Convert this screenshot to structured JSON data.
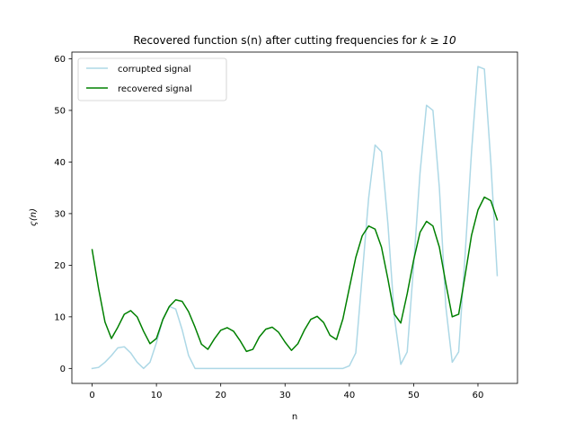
{
  "chart_data": {
    "type": "line",
    "title": "Recovered function s(n) after cutting frequencies for k ≥ 10",
    "title_main": "Recovered function s(n) after cutting frequencies for ",
    "title_math": "k ≥ 10",
    "xlabel": "n",
    "ylabel": "ς(n)",
    "xlim": [
      -3.15,
      66.15
    ],
    "ylim": [
      -2.9,
      61.3
    ],
    "xticks": [
      0,
      10,
      20,
      30,
      40,
      50,
      60
    ],
    "yticks": [
      0,
      10,
      20,
      30,
      40,
      50,
      60
    ],
    "grid": false,
    "legend_position": "top-left",
    "x": [
      0,
      1,
      2,
      3,
      4,
      5,
      6,
      7,
      8,
      9,
      10,
      11,
      12,
      13,
      14,
      15,
      16,
      17,
      18,
      19,
      20,
      21,
      22,
      23,
      24,
      25,
      26,
      27,
      28,
      29,
      30,
      31,
      32,
      33,
      34,
      35,
      36,
      37,
      38,
      39,
      40,
      41,
      42,
      43,
      44,
      45,
      46,
      47,
      48,
      49,
      50,
      51,
      52,
      53,
      54,
      55,
      56,
      57,
      58,
      59,
      60,
      61,
      62,
      63
    ],
    "series": [
      {
        "name": "corrupted signal",
        "color": "#add8e6",
        "values": [
          0,
          0.2,
          1.2,
          2.5,
          4,
          4.2,
          3,
          1.2,
          0,
          1.2,
          5,
          9.5,
          12,
          11.5,
          7.5,
          2.5,
          0,
          0,
          0,
          0,
          0,
          0,
          0,
          0,
          0,
          0,
          0,
          0,
          0,
          0,
          0,
          0,
          0,
          0,
          0,
          0,
          0,
          0,
          0,
          0,
          0.5,
          3,
          18,
          33,
          43.3,
          42,
          28,
          10,
          0.8,
          3.2,
          20,
          38,
          51,
          50,
          35,
          12,
          1.2,
          3.2,
          22,
          42,
          58.5,
          58,
          40,
          18
        ]
      },
      {
        "name": "recovered signal",
        "color": "#008000",
        "values": [
          23,
          15.5,
          9,
          5.8,
          8,
          10.5,
          11.2,
          10,
          7.2,
          4.8,
          5.8,
          9.5,
          12,
          13.3,
          13,
          11,
          8,
          4.7,
          3.7,
          5.7,
          7.4,
          7.9,
          7.2,
          5.4,
          3.3,
          3.7,
          6.1,
          7.6,
          8,
          7,
          5.1,
          3.5,
          4.8,
          7.4,
          9.5,
          10.1,
          8.9,
          6.4,
          5.6,
          9.6,
          15.6,
          21.5,
          25.7,
          27.6,
          27,
          23.5,
          17.3,
          10.5,
          8.8,
          14.5,
          21,
          26.4,
          28.5,
          27.6,
          23.5,
          16.5,
          10,
          10.5,
          18,
          25.8,
          30.7,
          33.2,
          32.5,
          28.8
        ]
      }
    ]
  }
}
